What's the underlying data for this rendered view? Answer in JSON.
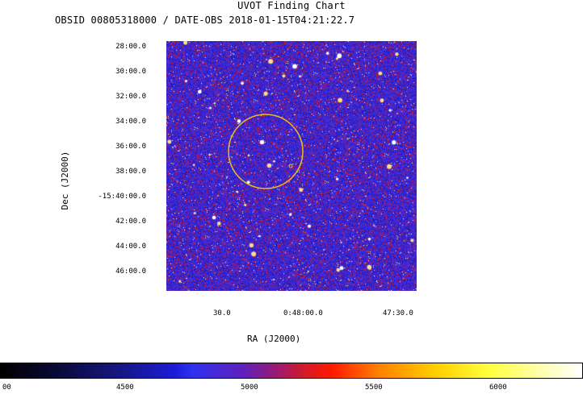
{
  "title": "UVOT Finding Chart",
  "subtitle": "OBSID 00805318000 / DATE-OBS 2018-01-15T04:21:22.7",
  "axes": {
    "ylabel": "Dec (J2000)",
    "xlabel": "RA (J2000)",
    "yticks": [
      "28:00.0",
      "30:00.0",
      "32:00.0",
      "34:00.0",
      "36:00.0",
      "38:00.0",
      "-15:40:00.0",
      "42:00.0",
      "44:00.0",
      "46:00.0"
    ],
    "xticks": [
      "30.0",
      "0:48:00.0",
      "47:30.0"
    ]
  },
  "colorbar": {
    "ticks": [
      "00",
      "4500",
      "5000",
      "5500",
      "6000"
    ]
  },
  "colors": {
    "circle": "#e8c020",
    "background": "#2a2ad0"
  }
}
